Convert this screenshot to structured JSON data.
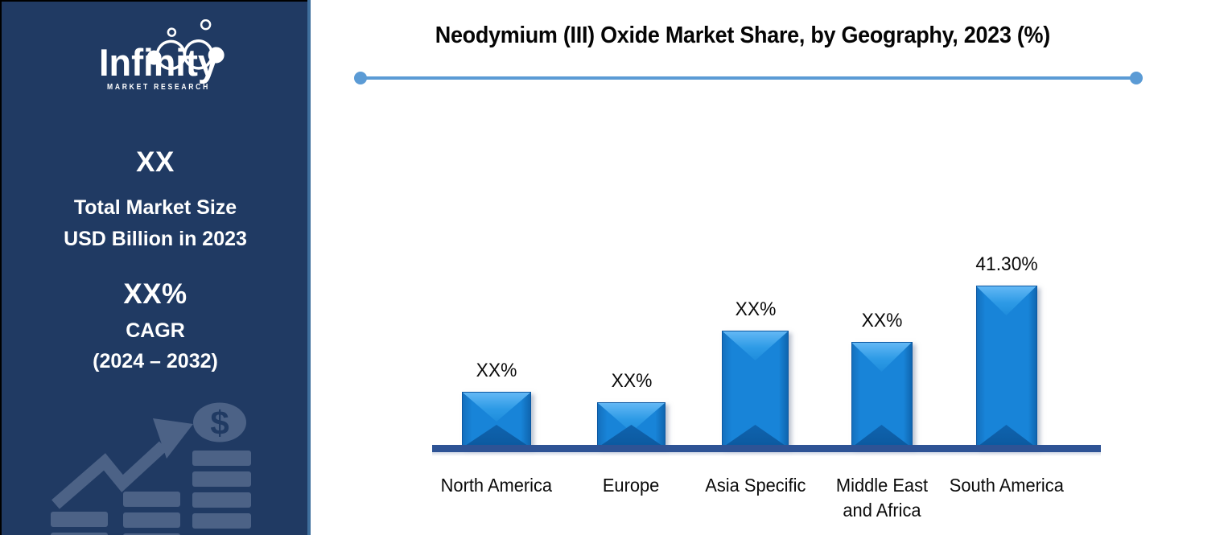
{
  "brand": {
    "name": "Infinity",
    "tagline": "MARKET RESEARCH"
  },
  "sidebar": {
    "market_size": {
      "value": "XX",
      "label_line1": "Total Market Size",
      "label_line2": "USD Billion in 2023"
    },
    "cagr": {
      "value": "XX%",
      "label": "CAGR",
      "period": "(2024 – 2032)"
    },
    "colors": {
      "background": "#203A63",
      "edge_strip": "#3E6E9C",
      "art": "#4C6286",
      "text": "#FFFFFF"
    }
  },
  "chart_data": {
    "type": "bar",
    "title": "Neodymium (III) Oxide Market Share, by Geography, 2023 (%)",
    "categories": [
      "North America",
      "Europe",
      "Asia Specific",
      "Middle East and Africa",
      "South America"
    ],
    "value_labels": [
      "XX%",
      "XX%",
      "XX%",
      "XX%",
      "41.30%"
    ],
    "values_pct_estimated": [
      14.3,
      11.7,
      29.9,
      27.0,
      41.3
    ],
    "max_labeled_value_pct": 41.3,
    "ylim": [
      0,
      45
    ],
    "grid": false,
    "legend": "none",
    "y_axis": "hidden",
    "colors": {
      "bar_fill": "#1884D8",
      "bar_bevel_light": "#63B8F5",
      "bar_bevel_dark": "#0C599F",
      "bar_border": "#0B57A2",
      "baseline": "#2E5395",
      "accent_divider": "#5B9BD5",
      "title_text": "#050505",
      "label_text": "#0A0A0A"
    }
  }
}
